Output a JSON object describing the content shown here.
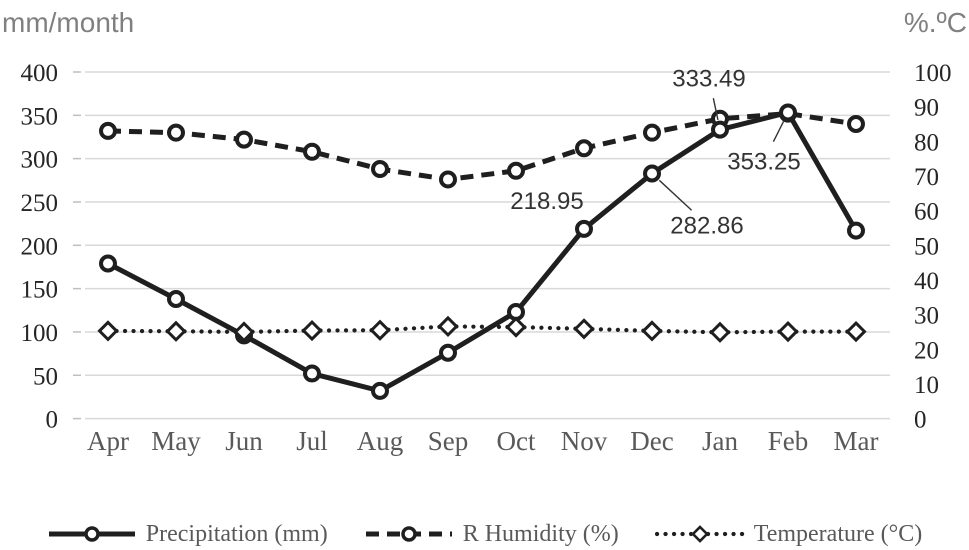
{
  "chart_data": {
    "type": "line",
    "categories": [
      "Apr",
      "May",
      "Jun",
      "Jul",
      "Aug",
      "Sep",
      "Oct",
      "Nov",
      "Dec",
      "Jan",
      "Feb",
      "Mar"
    ],
    "series": [
      {
        "name": "Precipitation (mm)",
        "axis": "left",
        "line_style": "solid",
        "marker": "circle",
        "values": [
          179,
          138,
          96,
          52,
          32,
          76,
          123,
          218.95,
          282.86,
          333.49,
          353.25,
          217
        ]
      },
      {
        "name": "R Humidity (%)",
        "axis": "right",
        "line_style": "dashed",
        "marker": "circle",
        "values": [
          83,
          82.5,
          80.5,
          77,
          72,
          69,
          71.5,
          78,
          82.5,
          86.5,
          88,
          85
        ]
      },
      {
        "name": "Temperature (°C)",
        "axis": "right",
        "line_style": "dotted",
        "marker": "diamond",
        "values": [
          25.3,
          25.2,
          25.0,
          25.4,
          25.5,
          26.6,
          26.4,
          25.9,
          25.3,
          24.9,
          25.1,
          25.1
        ]
      }
    ],
    "left_axis": {
      "title": "mm/month",
      "min": 0,
      "max": 400,
      "tick_step": 50,
      "tick_labels": [
        "400",
        "350",
        "300",
        "250",
        "200",
        "150",
        "100",
        "50",
        "0"
      ]
    },
    "right_axis": {
      "title": "%.ºC",
      "min": 0,
      "max": 100,
      "tick_step": 10,
      "tick_labels": [
        "100",
        "90",
        "80",
        "70",
        "60",
        "50",
        "40",
        "30",
        "20",
        "10",
        "0"
      ]
    },
    "annotations": [
      {
        "text": "218.95",
        "series": 0,
        "category": "Nov",
        "placement": "above-left",
        "leader": false
      },
      {
        "text": "282.86",
        "series": 0,
        "category": "Dec",
        "placement": "below-right",
        "leader": true
      },
      {
        "text": "333.49",
        "series": 0,
        "category": "Jan",
        "placement": "above",
        "leader": true
      },
      {
        "text": "353.25",
        "series": 0,
        "category": "Feb",
        "placement": "below-left",
        "leader": true
      }
    ],
    "legend": {
      "position": "bottom",
      "entries": [
        "Precipitation (mm)",
        "R Humidity (%)",
        "Temperature (°C)"
      ]
    },
    "grid": true
  },
  "colors": {
    "line": "#1f1f1f",
    "gridline": "#d9d9d9",
    "tick_mark": "#bfbfbf",
    "tick_text": "#262626",
    "category_text": "#595959",
    "axis_title_text": "#808080",
    "annotation_text": "#333333",
    "legend_text": "#595959",
    "marker_fill": "#ffffff",
    "background": "#ffffff"
  }
}
